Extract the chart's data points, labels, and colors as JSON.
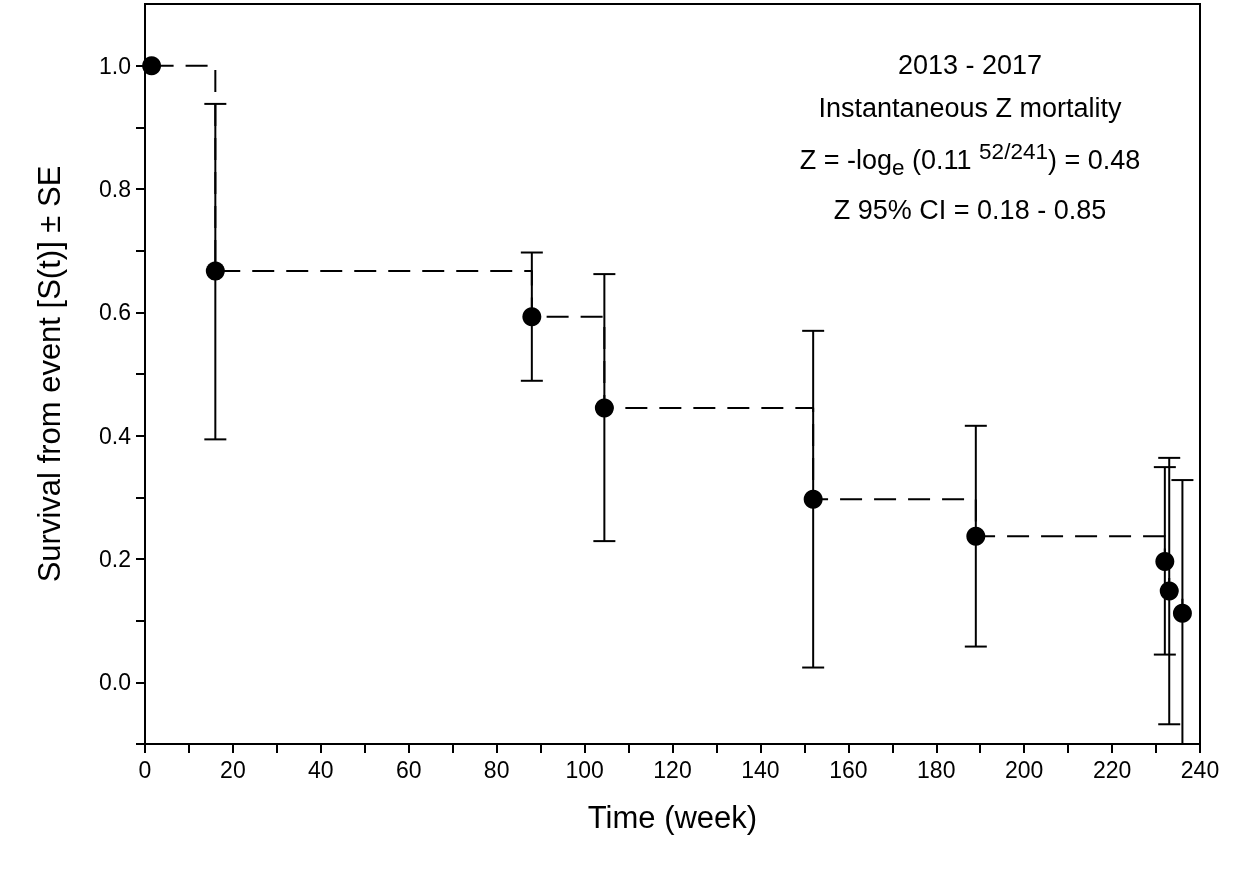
{
  "chart_data": {
    "type": "scatter",
    "xlabel": "Time (week)",
    "ylabel": "Survival from event [S(t)] ± SE",
    "annotations": [
      "2013 - 2017",
      "Instantaneous Z mortality",
      "Z = -log$_{e}$ (0.11 $^{52/241}$) = 0.48",
      "Z 95% CI = 0.18 - 0.85"
    ],
    "series": [
      {
        "type": "step",
        "color": "#000000",
        "line_style": "dashed",
        "marker": "none",
        "x": [
          1.5,
          16,
          88,
          104.5,
          152,
          189,
          232,
          233,
          236,
          240
        ],
        "values": [
          1.0,
          0.667,
          0.593,
          0.445,
          0.297,
          0.237,
          0.196,
          0.148,
          0.112,
          0.112
        ]
      },
      {
        "color": "#000000",
        "marker": "circle",
        "x": [
          1.5,
          16,
          88,
          104.5,
          152,
          189,
          232,
          233,
          236
        ],
        "values": [
          1.0,
          0.667,
          0.593,
          0.445,
          0.297,
          0.237,
          0.196,
          0.148,
          0.112
        ],
        "errors": [
          null,
          [
            0.394,
            0.938
          ],
          [
            0.489,
            0.697
          ],
          [
            0.229,
            0.662
          ],
          [
            0.024,
            0.57
          ],
          [
            0.058,
            0.416
          ],
          [
            0.045,
            0.349
          ],
          [
            -0.068,
            0.364
          ],
          [
            -0.1,
            0.328
          ]
        ]
      }
    ],
    "xlim": [
      0,
      240
    ],
    "xticks": [
      0,
      {
        "value": 10,
        "label": null
      },
      20,
      {
        "value": 30,
        "label": null
      },
      40,
      {
        "value": 50,
        "label": null
      },
      60,
      {
        "value": 70,
        "label": null
      },
      80,
      {
        "value": 90,
        "label": null
      },
      100,
      {
        "value": 110,
        "label": null
      },
      120,
      {
        "value": 130,
        "label": null
      },
      140,
      {
        "value": 150,
        "label": null
      },
      160,
      {
        "value": 170,
        "label": null
      },
      180,
      {
        "value": 190,
        "label": null
      },
      200,
      {
        "value": 210,
        "label": null
      },
      220,
      {
        "value": 230,
        "label": null
      },
      240
    ],
    "ylim": [
      -0.1,
      1.1
    ],
    "yticks": [
      {
        "value": -0.1,
        "label": null
      },
      {
        "value": 0,
        "label": "0.0"
      },
      {
        "value": 0.1,
        "label": null
      },
      0.2,
      {
        "value": 0.3,
        "label": null
      },
      0.4,
      {
        "value": 0.5,
        "label": null
      },
      0.6,
      {
        "value": 0.7,
        "label": null
      },
      0.8,
      {
        "value": 0.9,
        "label": null
      },
      {
        "value": 1,
        "label": "1.0"
      }
    ],
    "grid": false
  }
}
